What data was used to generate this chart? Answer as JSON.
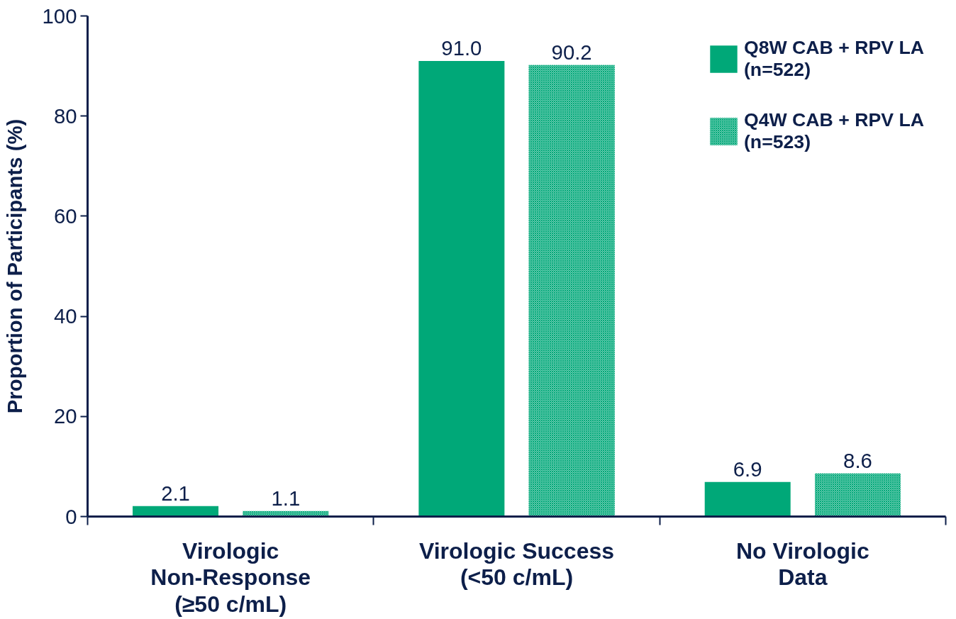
{
  "chart_data": {
    "type": "bar",
    "ylabel": "Proportion of Participants (%)",
    "categories": [
      "Virologic\nNon-Response\n(≥50 c/mL)",
      "Virologic Success\n(<50 c/mL)",
      "No Virologic\nData"
    ],
    "series": [
      {
        "name": "Q8W CAB + RPV LA\n(n=522)",
        "color": "#00a878",
        "values": [
          2.1,
          91.0,
          6.9
        ],
        "value_labels": [
          "2.1",
          "91.0",
          "6.9"
        ]
      },
      {
        "name": "Q4W CAB + RPV LA\n(n=523)",
        "color": "#00a878",
        "values": [
          1.1,
          90.2,
          8.6
        ],
        "value_labels": [
          "1.1",
          "90.2",
          "8.6"
        ]
      }
    ],
    "ylim": [
      0,
      100
    ],
    "yticks": [
      0,
      20,
      40,
      60,
      80,
      100
    ],
    "grid": false,
    "legend": "top right"
  }
}
